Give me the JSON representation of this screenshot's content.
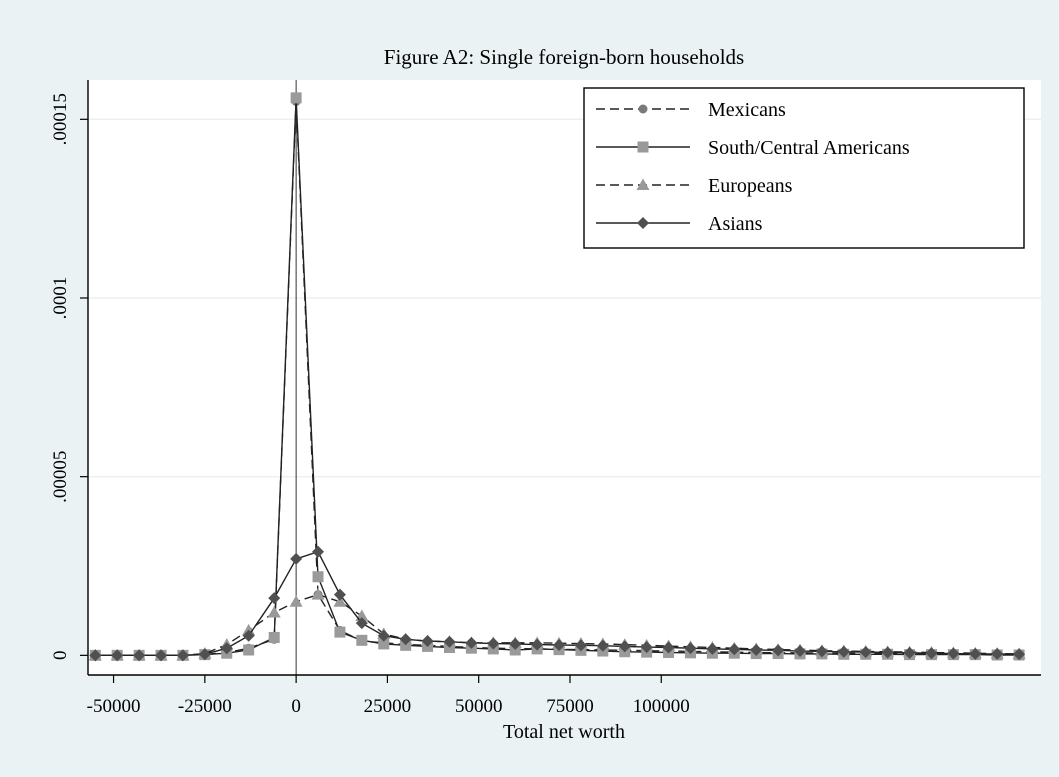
{
  "chart_data": {
    "type": "line",
    "title": "Figure A2: Single foreign-born households",
    "xlabel": "Total net worth",
    "ylabel": "",
    "xlim": [
      -57000,
      204000
    ],
    "ylim": [
      -5.5e-06,
      0.000161
    ],
    "x_ticks": [
      -50000,
      -25000,
      0,
      25000,
      50000,
      75000,
      100000
    ],
    "x_tick_labels": [
      "-50000",
      "-25000",
      "0",
      "25000",
      "50000",
      "75000",
      "100000"
    ],
    "y_ticks": [
      0,
      5e-05,
      0.0001,
      0.00015
    ],
    "y_tick_labels": [
      "0",
      ".00005",
      ".0001",
      ".00015"
    ],
    "reference_line_x": 0,
    "grid": "horizontal",
    "legend_position": "top-right",
    "x": [
      -55000,
      -49000,
      -43000,
      -37000,
      -31000,
      -25000,
      -19000,
      -13000,
      -6000,
      0,
      6000,
      12000,
      18000,
      24000,
      30000,
      36000,
      42000,
      48000,
      54000,
      60000,
      66000,
      72000,
      78000,
      84000,
      90000,
      96000,
      102000,
      108000,
      114000,
      120000,
      126000,
      132000,
      138000,
      144000,
      150000,
      156000,
      162000,
      168000,
      174000,
      180000,
      186000,
      192000,
      198000
    ],
    "series": [
      {
        "name": "Mexicans",
        "marker": "circle",
        "dash": "dashed",
        "color": "#7a7a7a",
        "values": [
          0,
          0,
          0,
          0,
          0,
          2e-07,
          8e-07,
          2e-06,
          4.5e-06,
          0.000155,
          1.7e-05,
          7e-06,
          4e-06,
          3.5e-06,
          3e-06,
          2.8e-06,
          2.5e-06,
          2.2e-06,
          2e-06,
          1.9e-06,
          1.8e-06,
          1.7e-06,
          1.6e-06,
          1.5e-06,
          1.4e-06,
          1.3e-06,
          1.2e-06,
          1.1e-06,
          1e-06,
          9e-07,
          8e-07,
          7e-07,
          7e-07,
          6e-07,
          6e-07,
          5e-07,
          5e-07,
          4e-07,
          4e-07,
          3e-07,
          3e-07,
          3e-07,
          2e-07
        ]
      },
      {
        "name": "South/Central Americans",
        "marker": "square",
        "dash": "solid",
        "color": "#9a9a9a",
        "values": [
          0,
          0,
          0,
          0,
          0,
          2e-07,
          6e-07,
          1.5e-06,
          5e-06,
          0.000156,
          2.2e-05,
          6.5e-06,
          4.2e-06,
          3.2e-06,
          2.8e-06,
          2.5e-06,
          2.2e-06,
          2e-06,
          1.8e-06,
          1.5e-06,
          1.8e-06,
          1.6e-06,
          1.4e-06,
          1.2e-06,
          1e-06,
          9e-07,
          8e-07,
          7e-07,
          6e-07,
          6e-07,
          5e-07,
          5e-07,
          4e-07,
          4e-07,
          3e-07,
          3e-07,
          3e-07,
          2e-07,
          2e-07,
          2e-07,
          2e-07,
          1e-07,
          1e-07
        ]
      },
      {
        "name": "Europeans",
        "marker": "triangle",
        "dash": "dashed",
        "color": "#999999",
        "values": [
          0,
          0,
          0,
          0,
          0,
          5e-07,
          3e-06,
          7e-06,
          1.2e-05,
          1.5e-05,
          1.7e-05,
          1.5e-05,
          1.1e-05,
          6e-06,
          4.5e-06,
          4e-06,
          3.8e-06,
          3.5e-06,
          3.5e-06,
          3.5e-06,
          3.5e-06,
          3.4e-06,
          3.3e-06,
          3.2e-06,
          3e-06,
          2.8e-06,
          2.6e-06,
          2.4e-06,
          2.2e-06,
          2e-06,
          1.8e-06,
          1.6e-06,
          1.5e-06,
          1.3e-06,
          1.2e-06,
          1.1e-06,
          1e-06,
          9e-07,
          8e-07,
          7e-07,
          6e-07,
          5e-07,
          4e-07
        ]
      },
      {
        "name": "Asians",
        "marker": "diamond",
        "dash": "solid",
        "color": "#505050",
        "values": [
          0,
          0,
          0,
          0,
          0,
          3e-07,
          2e-06,
          5.5e-06,
          1.6e-05,
          2.7e-05,
          2.9e-05,
          1.7e-05,
          9e-06,
          5.5e-06,
          4.5e-06,
          4e-06,
          3.8e-06,
          3.5e-06,
          3.3e-06,
          3.2e-06,
          3e-06,
          2.9e-06,
          2.8e-06,
          2.7e-06,
          2.5e-06,
          2.3e-06,
          2.2e-06,
          2e-06,
          1.8e-06,
          1.7e-06,
          1.5e-06,
          1.4e-06,
          1.2e-06,
          1.1e-06,
          1e-06,
          9e-07,
          8e-07,
          7e-07,
          6e-07,
          5e-07,
          4e-07,
          4e-07,
          3e-07
        ]
      }
    ]
  }
}
